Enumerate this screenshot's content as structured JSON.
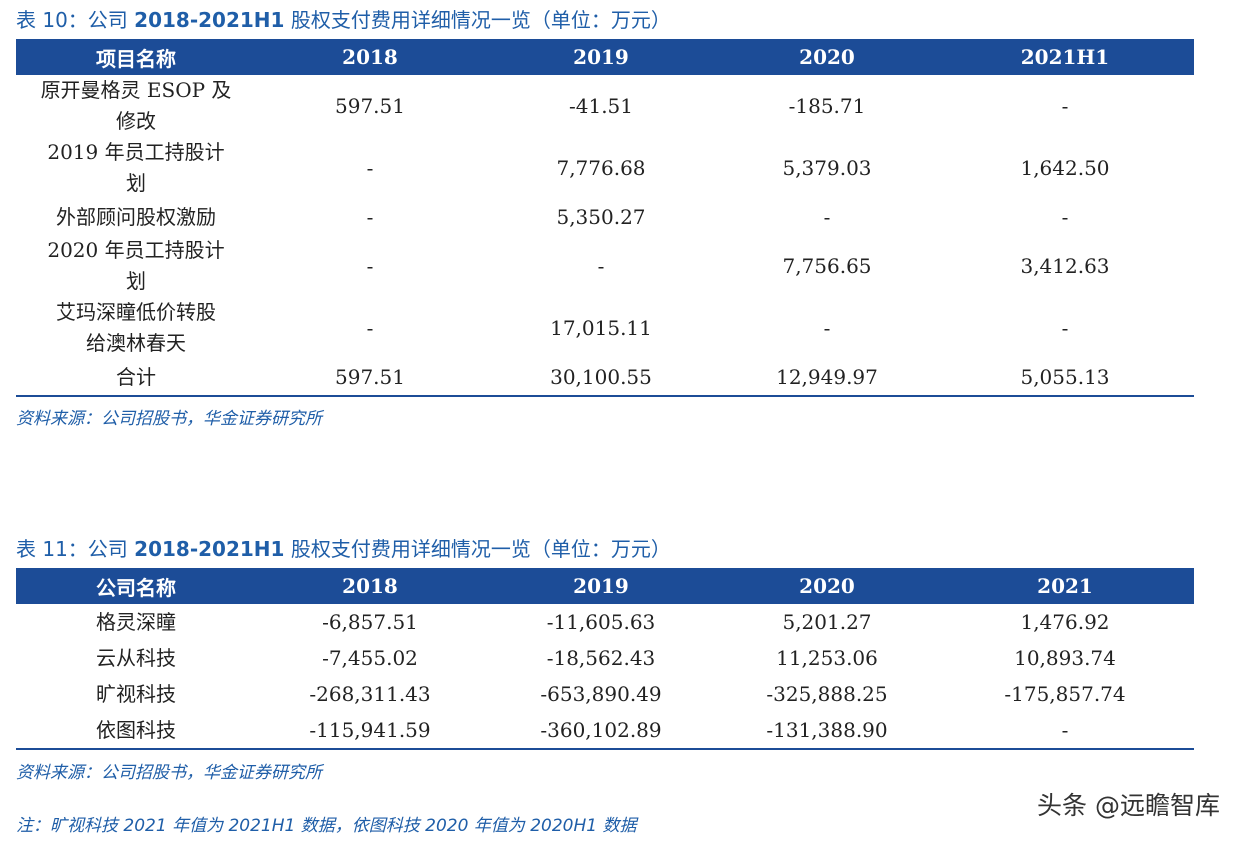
{
  "table10": {
    "caption_prefix": "表 10：公司",
    "caption_range": "2018-2021H1",
    "caption_suffix": "股权支付费用详细情况一览（单位：万元）",
    "headers": [
      "项目名称",
      "2018",
      "2019",
      "2020",
      "2021H1"
    ],
    "rows": [
      {
        "name_l1": "原开曼格灵 ESOP 及",
        "name_l2": "修改",
        "v2018": "597.51",
        "v2019": "-41.51",
        "v2020": "-185.71",
        "v2021": "-"
      },
      {
        "name_l1": "2019 年员工持股计",
        "name_l2": "划",
        "v2018": "-",
        "v2019": "7,776.68",
        "v2020": "5,379.03",
        "v2021": "1,642.50"
      },
      {
        "name_l1": "外部顾问股权激励",
        "name_l2": "",
        "v2018": "-",
        "v2019": "5,350.27",
        "v2020": "-",
        "v2021": "-"
      },
      {
        "name_l1": "2020 年员工持股计",
        "name_l2": "划",
        "v2018": "-",
        "v2019": "-",
        "v2020": "7,756.65",
        "v2021": "3,412.63"
      },
      {
        "name_l1": "艾玛深瞳低价转股",
        "name_l2": "给澳林春天",
        "v2018": "-",
        "v2019": "17,015.11",
        "v2020": "-",
        "v2021": "-"
      },
      {
        "name_l1": "合计",
        "name_l2": "",
        "v2018": "597.51",
        "v2019": "30,100.55",
        "v2020": "12,949.97",
        "v2021": "5,055.13"
      }
    ],
    "source": "资料来源：公司招股书，华金证券研究所"
  },
  "table11": {
    "caption_prefix": "表 11：公司",
    "caption_range": "2018-2021H1",
    "caption_suffix": "股权支付费用详细情况一览（单位：万元）",
    "headers": [
      "公司名称",
      "2018",
      "2019",
      "2020",
      "2021"
    ],
    "rows": [
      {
        "name": "格灵深瞳",
        "v2018": "-6,857.51",
        "v2019": "-11,605.63",
        "v2020": "5,201.27",
        "v2021": "1,476.92"
      },
      {
        "name": "云从科技",
        "v2018": "-7,455.02",
        "v2019": "-18,562.43",
        "v2020": "11,253.06",
        "v2021": "10,893.74"
      },
      {
        "name": "旷视科技",
        "v2018": "-268,311.43",
        "v2019": "-653,890.49",
        "v2020": "-325,888.25",
        "v2021": "-175,857.74"
      },
      {
        "name": "依图科技",
        "v2018": "-115,941.59",
        "v2019": "-360,102.89",
        "v2020": "-131,388.90",
        "v2021": "-"
      }
    ],
    "source": "资料来源：公司招股书，华金证券研究所"
  },
  "note": "注：旷视科技 2021 年值为 2021H1 数据，依图科技 2020 年值为 2020H1 数据",
  "watermark": "头条 @远瞻智库",
  "colors": {
    "header_bg": "#1c4c97",
    "caption_text": "#1f5ea8"
  }
}
